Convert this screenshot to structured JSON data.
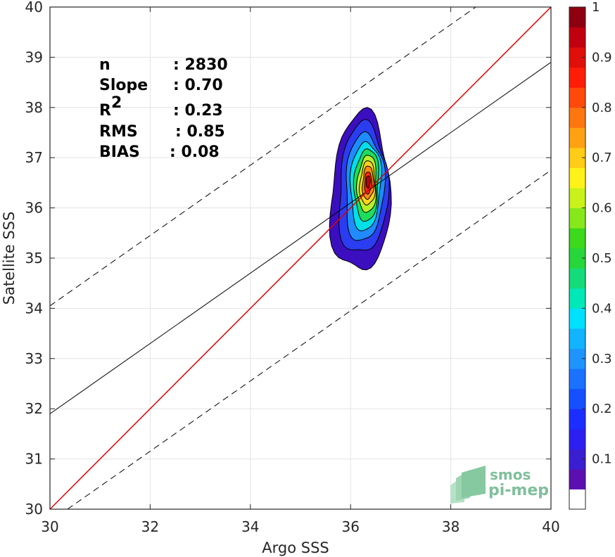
{
  "chart_data": {
    "type": "heatmap",
    "subtype": "density-contour-scatter",
    "xlabel": "Argo SSS",
    "ylabel": "Satellite SSS",
    "xlim": [
      30,
      40
    ],
    "ylim": [
      30,
      40
    ],
    "xticks": [
      "30",
      "32",
      "34",
      "36",
      "38",
      "40"
    ],
    "yticks": [
      "30",
      "31",
      "32",
      "33",
      "34",
      "35",
      "36",
      "37",
      "38",
      "39",
      "40"
    ],
    "grid": true,
    "stats": [
      {
        "label": "n",
        "value": ": 2830"
      },
      {
        "label": "Slope",
        "value": ": 0.70"
      },
      {
        "label": "R",
        "sup": "2",
        "value": ": 0.23"
      },
      {
        "label": "RMS",
        "value": ": 0.85"
      },
      {
        "label": "BIAS",
        "value": ": 0.08"
      }
    ],
    "lines": {
      "identity": {
        "color": "#e00000",
        "x": [
          30,
          40
        ],
        "y": [
          30,
          40
        ]
      },
      "regression": {
        "color": "#000000",
        "slope": 0.7,
        "intercept": 10.9
      },
      "upper_bound": {
        "color": "#000000",
        "dash": true,
        "x": [
          30,
          38.5
        ],
        "y": [
          34.05,
          40
        ]
      },
      "lower_bound": {
        "color": "#000000",
        "dash": true,
        "x": [
          30.35,
          40
        ],
        "y": [
          30,
          36.75
        ]
      }
    },
    "density": {
      "center": [
        36.35,
        36.5
      ],
      "levels": [
        {
          "value": 0.05,
          "color": "#3b0fbf",
          "cx": 36.2,
          "cy": 36.3,
          "rx": 0.58,
          "ry": 1.58
        },
        {
          "value": 0.15,
          "color": "#2a3df0",
          "cx": 36.25,
          "cy": 36.38,
          "rx": 0.48,
          "ry": 1.3
        },
        {
          "value": 0.25,
          "color": "#1f8bff",
          "cx": 36.28,
          "cy": 36.42,
          "rx": 0.38,
          "ry": 1.07
        },
        {
          "value": 0.35,
          "color": "#00e0e6",
          "cx": 36.3,
          "cy": 36.45,
          "rx": 0.3,
          "ry": 0.88
        },
        {
          "value": 0.45,
          "color": "#1fdc5a",
          "cx": 36.32,
          "cy": 36.47,
          "rx": 0.24,
          "ry": 0.72
        },
        {
          "value": 0.55,
          "color": "#b8ef2a",
          "cx": 36.33,
          "cy": 36.48,
          "rx": 0.19,
          "ry": 0.57
        },
        {
          "value": 0.65,
          "color": "#ffd21e",
          "cx": 36.34,
          "cy": 36.49,
          "rx": 0.15,
          "ry": 0.44
        },
        {
          "value": 0.75,
          "color": "#ff8c12",
          "cx": 36.35,
          "cy": 36.5,
          "rx": 0.11,
          "ry": 0.33
        },
        {
          "value": 0.85,
          "color": "#ff2a0a",
          "cx": 36.35,
          "cy": 36.5,
          "rx": 0.07,
          "ry": 0.22
        },
        {
          "value": 0.95,
          "color": "#b80018",
          "cx": 36.35,
          "cy": 36.52,
          "rx": 0.04,
          "ry": 0.12
        }
      ]
    },
    "colorbar": {
      "range": [
        0,
        1
      ],
      "ticks": [
        "0.1",
        "0.2",
        "0.3",
        "0.4",
        "0.5",
        "0.6",
        "0.7",
        "0.8",
        "0.9",
        "1"
      ],
      "tick_values": [
        0.1,
        0.2,
        0.3,
        0.4,
        0.5,
        0.6,
        0.7,
        0.8,
        0.9,
        1.0
      ],
      "colors": [
        "#ffffff",
        "#5b0fb0",
        "#3a1ed1",
        "#2b20f0",
        "#1b2eff",
        "#1550ff",
        "#1a72ff",
        "#1f94ff",
        "#12b4ff",
        "#00e0ff",
        "#00e8b8",
        "#15dc7a",
        "#27d63a",
        "#3cd91c",
        "#86e81b",
        "#c8f21a",
        "#fff21a",
        "#ffcc17",
        "#ffa113",
        "#ff760f",
        "#ff4a0b",
        "#ff1d07",
        "#e00f0a",
        "#c0000e",
        "#8e0010"
      ]
    }
  },
  "logo": {
    "line1": "smos",
    "line2": "pi-mep"
  }
}
